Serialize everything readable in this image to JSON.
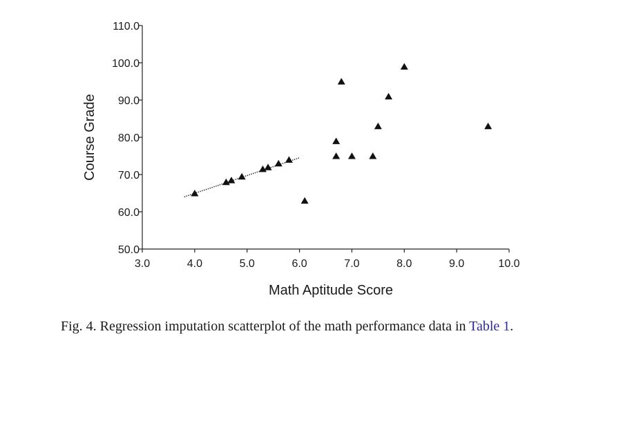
{
  "chart_data": {
    "type": "scatter",
    "title": "",
    "xlabel": "Math Aptitude Score",
    "ylabel": "Course Grade",
    "xlim": [
      3.0,
      10.0
    ],
    "ylim": [
      50.0,
      110.0
    ],
    "x_ticks": [
      "3.0",
      "4.0",
      "5.0",
      "6.0",
      "7.0",
      "8.0",
      "9.0",
      "10.0"
    ],
    "x_tick_values": [
      3,
      4,
      5,
      6,
      7,
      8,
      9,
      10
    ],
    "y_ticks": [
      "50.0",
      "60.0",
      "70.0",
      "80.0",
      "90.0",
      "100.0",
      "110.0"
    ],
    "y_tick_values": [
      50,
      60,
      70,
      80,
      90,
      100,
      110
    ],
    "grid": false,
    "marker": "triangle",
    "series": [
      {
        "name": "Math performance data",
        "points": [
          {
            "x": 4.0,
            "y": 65.0
          },
          {
            "x": 4.6,
            "y": 68.0
          },
          {
            "x": 4.7,
            "y": 68.5
          },
          {
            "x": 4.9,
            "y": 69.5
          },
          {
            "x": 5.3,
            "y": 71.5
          },
          {
            "x": 5.4,
            "y": 72.0
          },
          {
            "x": 5.6,
            "y": 73.0
          },
          {
            "x": 5.8,
            "y": 74.0
          },
          {
            "x": 6.1,
            "y": 63.0
          },
          {
            "x": 6.7,
            "y": 75.0
          },
          {
            "x": 6.7,
            "y": 79.0
          },
          {
            "x": 6.8,
            "y": 95.0
          },
          {
            "x": 7.0,
            "y": 75.0
          },
          {
            "x": 7.4,
            "y": 75.0
          },
          {
            "x": 7.5,
            "y": 83.0
          },
          {
            "x": 7.7,
            "y": 91.0
          },
          {
            "x": 8.0,
            "y": 99.0
          },
          {
            "x": 9.6,
            "y": 83.0
          }
        ]
      }
    ],
    "regression_line": {
      "style": "dotted",
      "x": [
        3.8,
        6.0
      ],
      "y": [
        64.0,
        74.5
      ]
    }
  },
  "caption": {
    "prefix": "Fig. 4. Regression imputation scatterplot of the math performance data in ",
    "link_text": "Table 1",
    "suffix": "."
  }
}
